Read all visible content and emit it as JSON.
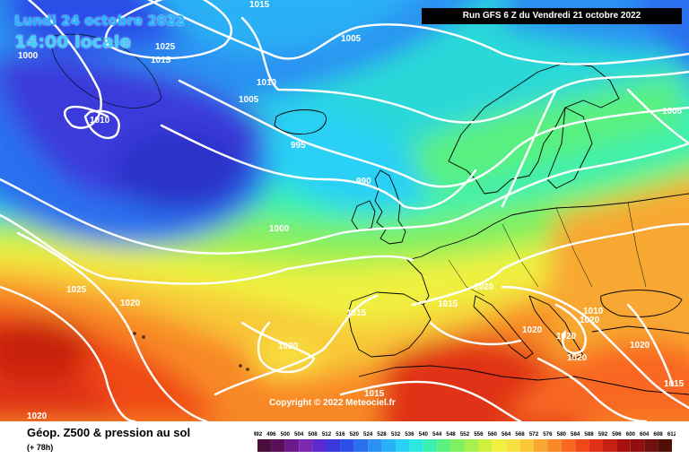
{
  "header": {
    "date": "Lundi 24 octobre 2022",
    "time": "14:00 locale",
    "run": "Run GFS 6 Z du Vendredi 21 octobre 2022"
  },
  "copyright": "Copyright © 2022 Meteociel.fr",
  "footer": {
    "title": "Géop. Z500 & pression au sol",
    "subtitle": "(+ 78h)"
  },
  "legend": {
    "ticks": [
      "492",
      "496",
      "500",
      "504",
      "508",
      "512",
      "516",
      "520",
      "524",
      "528",
      "532",
      "536",
      "540",
      "544",
      "548",
      "552",
      "556",
      "560",
      "564",
      "568",
      "572",
      "576",
      "580",
      "584",
      "588",
      "592",
      "596",
      "600",
      "604",
      "608",
      "612"
    ],
    "colors": [
      "#4b0d3c",
      "#5a0f5a",
      "#6a1a8a",
      "#7a2ab0",
      "#5a2ad0",
      "#3a3adc",
      "#2a50e8",
      "#2a70ee",
      "#2a90f2",
      "#2ab0f5",
      "#2ad0f5",
      "#2ae8e0",
      "#3af0b0",
      "#5af080",
      "#80f060",
      "#a8f050",
      "#d0f040",
      "#f0f040",
      "#f8e040",
      "#f8c838",
      "#f8a830",
      "#f88828",
      "#f86820",
      "#f04818",
      "#e03018",
      "#c82010",
      "#a81010",
      "#901010",
      "#701010",
      "#501008"
    ]
  },
  "isobars": [
    "1015",
    "1025",
    "1015",
    "1000",
    "1005",
    "1010",
    "1005",
    "1010",
    "995",
    "990",
    "1000",
    "1025",
    "1020",
    "1015",
    "1015",
    "1020",
    "1020",
    "1020",
    "1020",
    "1020",
    "1020",
    "1020",
    "1015",
    "1015",
    "1020",
    "1005",
    "1010"
  ],
  "colors": {
    "land_border": "#000000",
    "isobar": "#ffffff"
  }
}
